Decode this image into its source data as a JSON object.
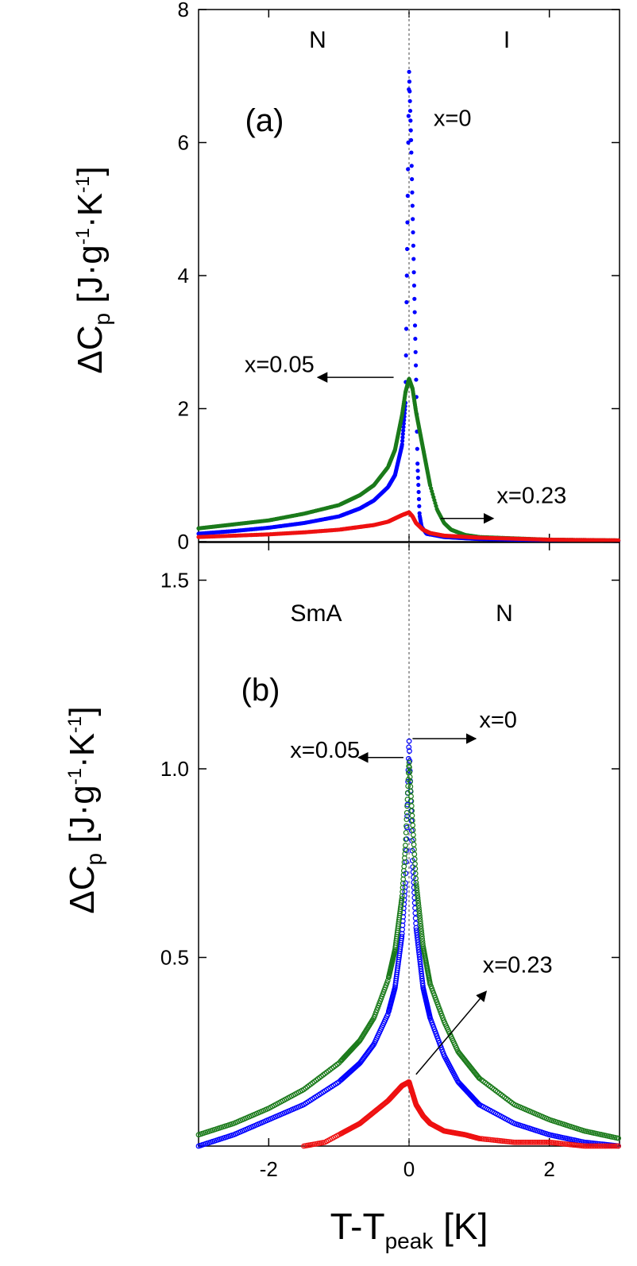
{
  "chart_data": [
    {
      "type": "scatter",
      "panel": "(a)",
      "phase_left": "N",
      "phase_right": "I",
      "ylabel": {
        "delta": "ΔC",
        "sub": "p",
        "open": " [J·g",
        "sup1": "-1",
        "mid": "·K",
        "sup2": "-1",
        "close": "]"
      },
      "xlim": [
        -3,
        3
      ],
      "ylim": [
        0,
        8
      ],
      "yticks": [
        0,
        2,
        4,
        6,
        8
      ],
      "ytick_labels": [
        "0",
        "2",
        "4",
        "6",
        "8"
      ],
      "xticks": [
        -2,
        0,
        2
      ],
      "series": [
        {
          "name": "x=0",
          "color": "#0000ff",
          "x": [
            -3.0,
            -2.5,
            -2.0,
            -1.5,
            -1.0,
            -0.7,
            -0.5,
            -0.3,
            -0.2,
            -0.1,
            -0.05,
            0.0,
            0.03,
            0.06,
            0.1,
            0.12,
            0.15,
            0.18,
            0.25,
            0.5,
            1.0,
            2.0,
            3.0
          ],
          "y": [
            0.12,
            0.16,
            0.21,
            0.28,
            0.38,
            0.5,
            0.62,
            0.82,
            1.0,
            1.45,
            2.1,
            7.1,
            6.0,
            4.5,
            2.5,
            1.2,
            0.4,
            0.22,
            0.12,
            0.07,
            0.04,
            0.02,
            0.01
          ]
        },
        {
          "name": "x=0.05",
          "color": "#1a7a1a",
          "x": [
            -3.0,
            -2.5,
            -2.0,
            -1.5,
            -1.0,
            -0.7,
            -0.5,
            -0.3,
            -0.2,
            -0.1,
            -0.05,
            0.0,
            0.05,
            0.1,
            0.2,
            0.3,
            0.4,
            0.5,
            0.6,
            0.8,
            1.0,
            2.0,
            3.0
          ],
          "y": [
            0.2,
            0.26,
            0.32,
            0.42,
            0.55,
            0.7,
            0.85,
            1.12,
            1.38,
            1.9,
            2.25,
            2.45,
            2.3,
            1.95,
            1.4,
            0.85,
            0.48,
            0.28,
            0.18,
            0.1,
            0.07,
            0.03,
            0.02
          ]
        },
        {
          "name": "x=0.23",
          "color": "#ee1111",
          "x": [
            -3.0,
            -2.0,
            -1.5,
            -1.0,
            -0.5,
            -0.3,
            -0.2,
            -0.1,
            0.0,
            0.05,
            0.1,
            0.2,
            0.3,
            0.5,
            1.0,
            2.0,
            3.0
          ],
          "y": [
            0.07,
            0.11,
            0.14,
            0.18,
            0.25,
            0.3,
            0.35,
            0.4,
            0.44,
            0.38,
            0.28,
            0.18,
            0.13,
            0.09,
            0.06,
            0.03,
            0.02
          ]
        }
      ],
      "annotations": [
        {
          "text": "x=0",
          "x": 0.35,
          "y": 6.25,
          "anchor": "start"
        },
        {
          "text": "x=0.05",
          "x": -1.35,
          "y": 2.55,
          "anchor": "end",
          "arrow_from": [
            -0.22,
            2.47
          ],
          "arrow_to": [
            -1.3,
            2.47
          ]
        },
        {
          "text": "x=0.23",
          "x": 1.25,
          "y": 0.58,
          "anchor": "start",
          "arrow_from": [
            0.45,
            0.35
          ],
          "arrow_to": [
            1.2,
            0.35
          ]
        }
      ]
    },
    {
      "type": "scatter",
      "panel": "(b)",
      "phase_left": "SmA",
      "phase_right": "N",
      "ylabel": {
        "delta": "ΔC",
        "sub": "p",
        "open": " [J·g",
        "sup1": "-1",
        "mid": "·K",
        "sup2": "-1",
        "close": "]"
      },
      "xlim": [
        -3,
        3
      ],
      "ylim": [
        0,
        1.6
      ],
      "yticks": [
        0.5,
        1.0,
        1.5
      ],
      "ytick_labels": [
        "0.5",
        "1.0",
        "1.5"
      ],
      "xticks": [
        -2,
        0,
        2
      ],
      "xtick_labels": [
        "-2",
        "0",
        "2"
      ],
      "series": [
        {
          "name": "x=0",
          "color": "#0000ff",
          "x": [
            -3.0,
            -2.5,
            -2.0,
            -1.5,
            -1.0,
            -0.7,
            -0.5,
            -0.3,
            -0.2,
            -0.1,
            -0.05,
            0.0,
            0.05,
            0.1,
            0.2,
            0.3,
            0.5,
            0.7,
            1.0,
            1.5,
            2.0,
            2.5,
            3.0
          ],
          "y": [
            0.0,
            0.03,
            0.07,
            0.11,
            0.17,
            0.22,
            0.27,
            0.35,
            0.42,
            0.56,
            0.7,
            1.08,
            0.75,
            0.58,
            0.42,
            0.34,
            0.24,
            0.17,
            0.11,
            0.06,
            0.03,
            0.01,
            0.0
          ]
        },
        {
          "name": "x=0.05",
          "color": "#1a7a1a",
          "x": [
            -3.0,
            -2.5,
            -2.0,
            -1.5,
            -1.0,
            -0.7,
            -0.5,
            -0.3,
            -0.2,
            -0.1,
            -0.05,
            0.0,
            0.05,
            0.1,
            0.2,
            0.3,
            0.5,
            0.7,
            1.0,
            1.5,
            2.0,
            2.5,
            3.0
          ],
          "y": [
            0.03,
            0.06,
            0.1,
            0.15,
            0.22,
            0.28,
            0.34,
            0.44,
            0.52,
            0.66,
            0.8,
            1.02,
            0.86,
            0.7,
            0.53,
            0.43,
            0.33,
            0.25,
            0.18,
            0.11,
            0.07,
            0.04,
            0.02
          ]
        },
        {
          "name": "x=0.23",
          "color": "#ee1111",
          "x": [
            -1.5,
            -1.2,
            -1.0,
            -0.7,
            -0.5,
            -0.3,
            -0.2,
            -0.1,
            0.0,
            0.05,
            0.1,
            0.2,
            0.3,
            0.5,
            0.8,
            1.0,
            1.5,
            2.0,
            2.5,
            3.0
          ],
          "y": [
            0.0,
            0.01,
            0.03,
            0.06,
            0.09,
            0.12,
            0.14,
            0.16,
            0.17,
            0.14,
            0.11,
            0.08,
            0.06,
            0.04,
            0.03,
            0.02,
            0.01,
            0.01,
            0.0,
            0.0
          ]
        }
      ],
      "annotations": [
        {
          "text": "x=0",
          "x": 1.0,
          "y": 1.11,
          "anchor": "start",
          "arrow_from": [
            0.05,
            1.08
          ],
          "arrow_to": [
            0.95,
            1.08
          ]
        },
        {
          "text": "x=0.05",
          "x": -0.7,
          "y": 1.03,
          "anchor": "end",
          "arrow_from": [
            -0.08,
            1.03
          ],
          "arrow_to": [
            -0.72,
            1.03
          ]
        },
        {
          "text": "x=0.23",
          "x": 1.05,
          "y": 0.46,
          "anchor": "start",
          "arrow_from": [
            0.1,
            0.19
          ],
          "arrow_to": [
            1.1,
            0.41
          ]
        }
      ]
    }
  ],
  "xlabel": {
    "main": "T-T",
    "sub": "peak",
    "unit": " [K]"
  },
  "colors": {
    "x0": "#0000ff",
    "x005": "#1a7a1a",
    "x023": "#ee1111"
  }
}
